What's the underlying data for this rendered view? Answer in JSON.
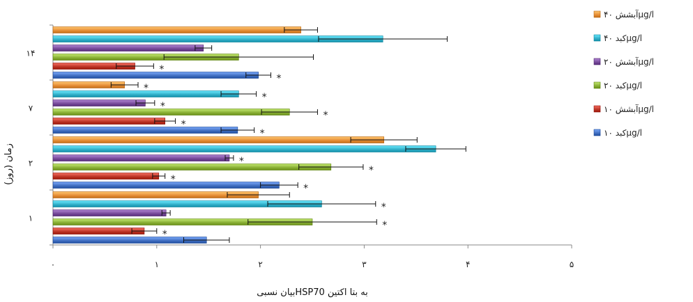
{
  "chart_data": {
    "type": "bar",
    "orientation": "horizontal",
    "xlabel": "بیان نسبیHSP70 به بتا اکتین",
    "ylabel": "زمان (روز)",
    "xlim": [
      0,
      5
    ],
    "x_ticks": [
      "۰",
      "۱",
      "۲",
      "۳",
      "۴",
      "۵"
    ],
    "categories": [
      "۱",
      "۲",
      "۷",
      "۱۴"
    ],
    "series": [
      {
        "name": "کبد ۱۰μg/l",
        "color": "#4472C4",
        "values": [
          1.48,
          2.18,
          1.78,
          1.98
        ],
        "errors": [
          0.22,
          0.18,
          0.16,
          0.12
        ]
      },
      {
        "name": "آبشش ۱۰μg/l",
        "color": "#C0392B",
        "values": [
          0.88,
          1.02,
          1.08,
          0.79
        ],
        "errors": [
          0.12,
          0.06,
          0.1,
          0.18
        ]
      },
      {
        "name": "کبد ۲۰μg/l",
        "color": "#8DB33A",
        "values": [
          2.5,
          2.68,
          2.28,
          1.79
        ],
        "errors": [
          0.62,
          0.31,
          0.27,
          0.72
        ]
      },
      {
        "name": "آبشش ۲۰μg/l",
        "color": "#7B4F9E",
        "values": [
          1.09,
          1.7,
          0.89,
          1.45
        ],
        "errors": [
          0.04,
          0.04,
          0.09,
          0.08
        ]
      },
      {
        "name": "کبد ۴۰μg/l",
        "color": "#35B3CC",
        "values": [
          2.59,
          3.69,
          1.79,
          3.18
        ],
        "errors": [
          0.52,
          0.29,
          0.17,
          0.62
        ]
      },
      {
        "name": "آبشش ۴۰μg/l",
        "color": "#E8913A",
        "values": [
          1.98,
          3.19,
          0.69,
          2.39
        ],
        "errors": [
          0.3,
          0.32,
          0.13,
          0.16
        ]
      }
    ],
    "annotations": {
      "symbol": "*",
      "marks": [
        [
          false,
          true,
          true,
          false,
          true,
          false
        ],
        [
          true,
          true,
          true,
          true,
          false,
          false
        ],
        [
          true,
          true,
          true,
          true,
          true,
          true
        ],
        [
          true,
          true,
          false,
          false,
          false,
          false
        ]
      ]
    },
    "legend": {
      "position": "right"
    },
    "grid": false
  }
}
